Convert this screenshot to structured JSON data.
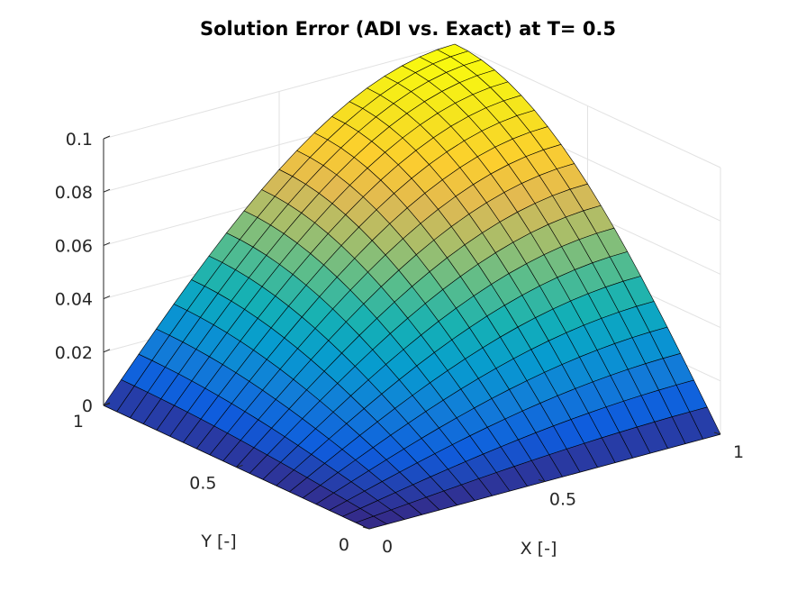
{
  "chart_data": {
    "type": "surface",
    "title": "Solution Error (ADI vs. Exact) at T= 0.5",
    "xlabel": "X [-]",
    "ylabel": "Y [-]",
    "zlabel": "",
    "xlim": [
      0,
      1
    ],
    "ylim": [
      0,
      1
    ],
    "zlim": [
      0,
      0.1
    ],
    "x_ticks": [
      "0",
      "0.5",
      "1"
    ],
    "y_ticks": [
      "0",
      "0.5",
      "1"
    ],
    "z_ticks": [
      "0",
      "0.02",
      "0.04",
      "0.06",
      "0.08",
      "0.1"
    ],
    "grid": true,
    "colormap": "parula",
    "grid_points": 21,
    "peak_value": 0.1,
    "peak_location": [
      1,
      1
    ],
    "surface_shape": "z = 0.1 * sin(pi*x/2) * sin(pi*y/2)"
  }
}
